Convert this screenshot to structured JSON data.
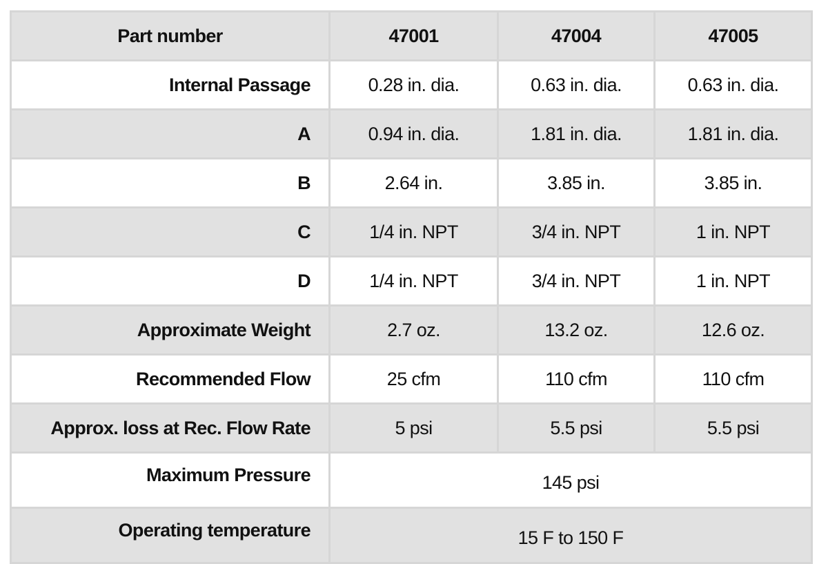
{
  "table": {
    "header": {
      "label": "Part number",
      "columns": [
        "47001",
        "47004",
        "47005"
      ]
    },
    "rows": [
      {
        "label": "Internal Passage",
        "values": [
          "0.28 in. dia.",
          "0.63 in. dia.",
          "0.63 in. dia."
        ]
      },
      {
        "label": "A",
        "values": [
          "0.94 in. dia.",
          "1.81 in. dia.",
          "1.81 in. dia."
        ]
      },
      {
        "label": "B",
        "values": [
          "2.64 in.",
          "3.85 in.",
          "3.85 in."
        ]
      },
      {
        "label": "C",
        "values": [
          "1/4 in. NPT",
          "3/4 in. NPT",
          "1 in. NPT"
        ]
      },
      {
        "label": "D",
        "values": [
          "1/4 in. NPT",
          "3/4 in. NPT",
          "1 in. NPT"
        ]
      },
      {
        "label": "Approximate Weight",
        "values": [
          "2.7 oz.",
          "13.2 oz.",
          "12.6 oz."
        ]
      },
      {
        "label": "Recommended Flow",
        "values": [
          "25 cfm",
          "110 cfm",
          "110 cfm"
        ]
      },
      {
        "label": "Approx. loss at Rec. Flow Rate",
        "values": [
          "5 psi",
          "5.5 psi",
          "5.5 psi"
        ]
      }
    ],
    "spanned_rows": [
      {
        "label": "Maximum Pressure",
        "value": "145 psi"
      },
      {
        "label": "Operating temperature",
        "value": "15 F to 150 F"
      }
    ],
    "colors": {
      "shaded_row": "#e1e1e1",
      "plain_row": "#ffffff",
      "grid_line": "#d6d6d6",
      "text": "#111111"
    }
  }
}
